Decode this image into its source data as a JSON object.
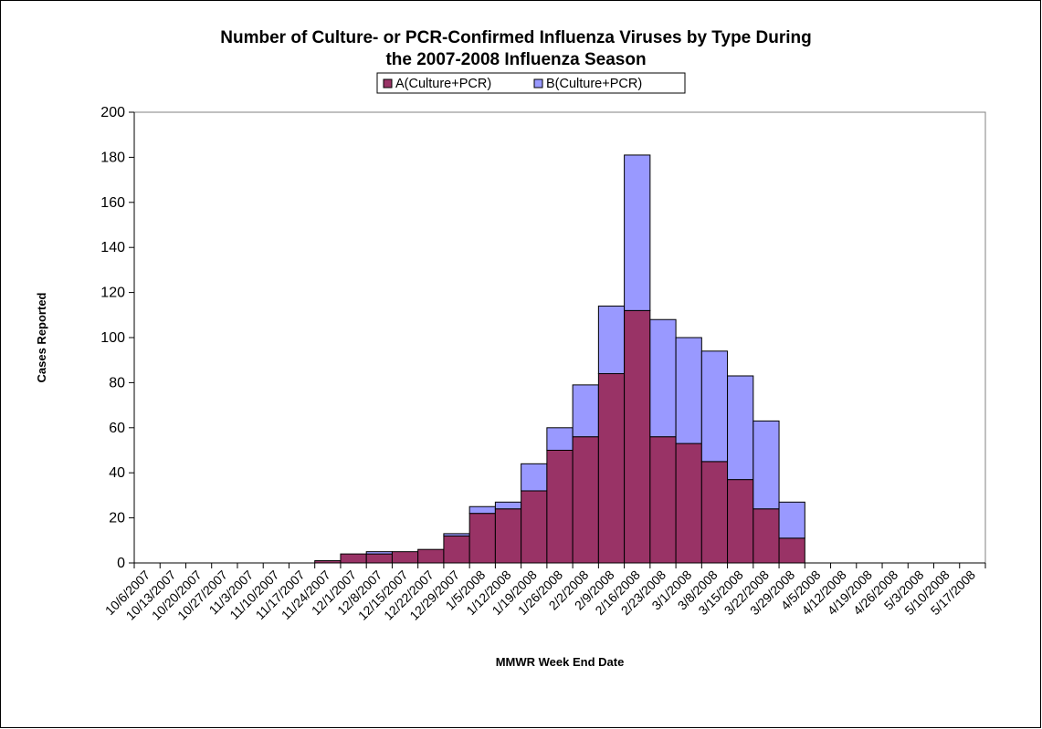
{
  "chart_data": {
    "type": "bar",
    "stacked": true,
    "title_lines": [
      "Number of Culture- or PCR-Confirmed Influenza Viruses by Type During",
      "the 2007-2008 Influenza Season"
    ],
    "xlabel": "MMWR Week End Date",
    "ylabel": "Cases Reported",
    "ylim": [
      0,
      200
    ],
    "yticks": [
      0,
      20,
      40,
      60,
      80,
      100,
      120,
      140,
      160,
      180,
      200
    ],
    "grid": false,
    "legend_position": "top-center",
    "categories": [
      "10/6/2007",
      "10/13/2007",
      "10/20/2007",
      "10/27/2007",
      "11/3/2007",
      "11/10/2007",
      "11/17/2007",
      "11/24/2007",
      "12/1/2007",
      "12/8/2007",
      "12/15/2007",
      "12/22/2007",
      "12/29/2007",
      "1/5/2008",
      "1/12/2008",
      "1/19/2008",
      "1/26/2008",
      "2/2/2008",
      "2/9/2008",
      "2/16/2008",
      "2/23/2008",
      "3/1/2008",
      "3/8/2008",
      "3/15/2008",
      "3/22/2008",
      "3/29/2008",
      "4/5/2008",
      "4/12/2008",
      "4/19/2008",
      "4/26/2008",
      "5/3/2008",
      "5/10/2008",
      "5/17/2008"
    ],
    "series": [
      {
        "name": "A(Culture+PCR)",
        "color": "#993366",
        "values": [
          0,
          0,
          0,
          0,
          0,
          0,
          0,
          1,
          4,
          4,
          5,
          6,
          12,
          22,
          24,
          32,
          50,
          56,
          84,
          112,
          56,
          53,
          45,
          37,
          24,
          11,
          0,
          0,
          0,
          0,
          0,
          0,
          0
        ]
      },
      {
        "name": "B(Culture+PCR)",
        "color": "#9999ff",
        "values": [
          0,
          0,
          0,
          0,
          0,
          0,
          0,
          0,
          0,
          1,
          0,
          0,
          1,
          3,
          3,
          12,
          10,
          23,
          30,
          69,
          52,
          47,
          49,
          46,
          39,
          16,
          0,
          0,
          0,
          0,
          0,
          0,
          0
        ]
      }
    ]
  }
}
